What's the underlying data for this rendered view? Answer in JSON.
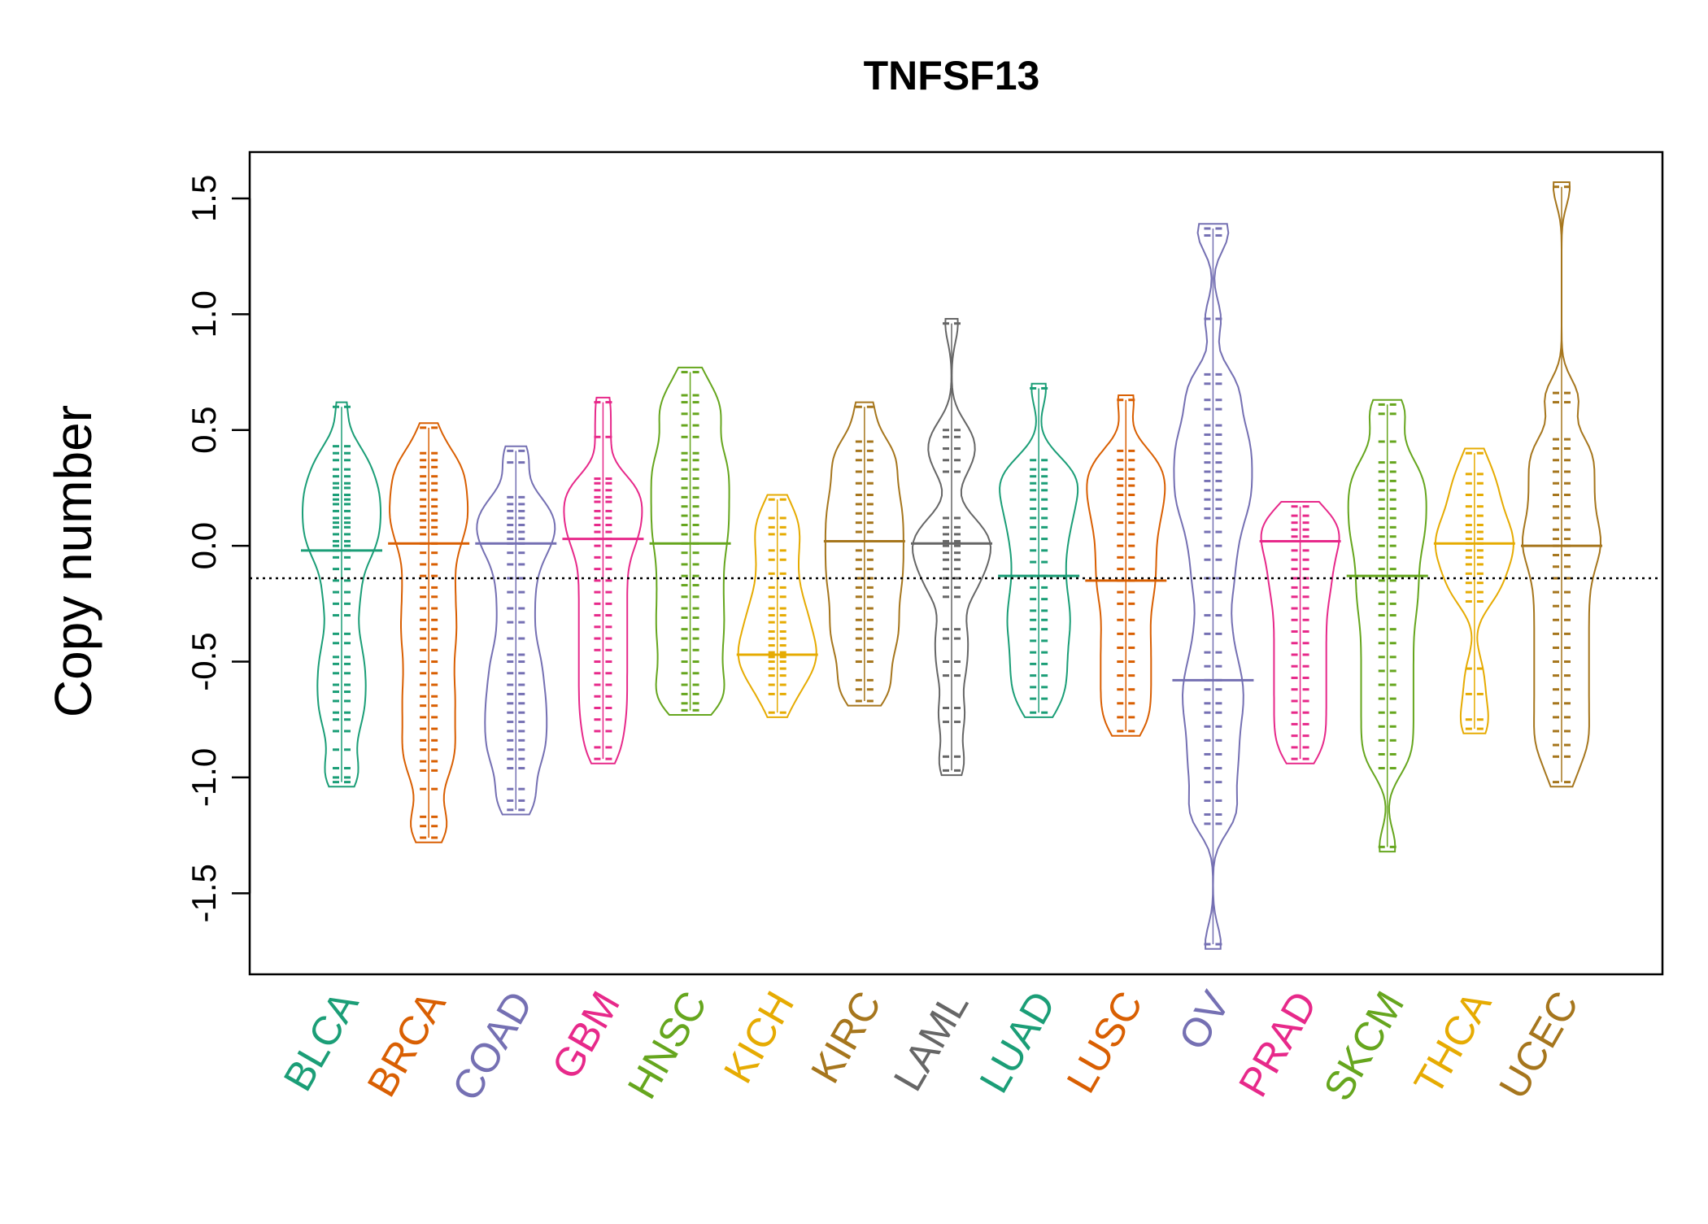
{
  "chart_data": {
    "type": "beanplot",
    "title": "TNFSF13",
    "xlabel": "",
    "ylabel": "Copy number",
    "ylim": [
      -1.85,
      1.7
    ],
    "yticks": [
      -1.5,
      -1.0,
      -0.5,
      0.0,
      0.5,
      1.0,
      1.5
    ],
    "ytick_labels": [
      "-1.5",
      "-1.0",
      "-0.5",
      "0.0",
      "0.5",
      "1.0",
      "1.5"
    ],
    "reference_line": -0.14,
    "grid": false,
    "legend": "none",
    "categories": [
      "BLCA",
      "BRCA",
      "COAD",
      "GBM",
      "HNSC",
      "KICH",
      "KIRC",
      "LAML",
      "LUAD",
      "LUSC",
      "OV",
      "PRAD",
      "SKCM",
      "THCA",
      "UCEC"
    ],
    "colors": [
      "#1B9E77",
      "#D95F02",
      "#7570B3",
      "#E7298A",
      "#66A61E",
      "#E6AB02",
      "#A6761D",
      "#666666",
      "#1B9E77",
      "#D95F02",
      "#7570B3",
      "#E7298A",
      "#66A61E",
      "#E6AB02",
      "#A6761D"
    ],
    "series": [
      {
        "category": "BLCA",
        "median": -0.02,
        "max": 0.6,
        "min": -1.02,
        "points": [
          0.6,
          0.43,
          0.4,
          0.37,
          0.33,
          0.3,
          0.27,
          0.25,
          0.22,
          0.2,
          0.18,
          0.15,
          0.12,
          0.1,
          0.08,
          0.05,
          0.02,
          0.0,
          -0.02,
          -0.05,
          -0.1,
          -0.15,
          -0.2,
          -0.25,
          -0.3,
          -0.38,
          -0.42,
          -0.48,
          -0.51,
          -0.55,
          -0.6,
          -0.63,
          -0.67,
          -0.72,
          -0.75,
          -0.8,
          -0.88,
          -0.96,
          -1.0,
          -1.02
        ]
      },
      {
        "category": "BRCA",
        "median": 0.01,
        "max": 0.51,
        "min": -1.26,
        "points": [
          0.51,
          0.4,
          0.37,
          0.34,
          0.3,
          0.27,
          0.24,
          0.2,
          0.17,
          0.14,
          0.11,
          0.08,
          0.05,
          0.01,
          -0.03,
          -0.08,
          -0.13,
          -0.18,
          -0.22,
          -0.27,
          -0.32,
          -0.36,
          -0.4,
          -0.45,
          -0.5,
          -0.55,
          -0.6,
          -0.65,
          -0.69,
          -0.74,
          -0.79,
          -0.84,
          -0.88,
          -0.93,
          -0.97,
          -1.05,
          -1.17,
          -1.21,
          -1.26
        ]
      },
      {
        "category": "COAD",
        "median": 0.01,
        "max": 0.41,
        "min": -1.14,
        "points": [
          0.41,
          0.36,
          0.21,
          0.18,
          0.15,
          0.12,
          0.09,
          0.06,
          0.03,
          0.01,
          -0.03,
          -0.08,
          -0.14,
          -0.2,
          -0.27,
          -0.33,
          -0.4,
          -0.47,
          -0.5,
          -0.55,
          -0.6,
          -0.64,
          -0.68,
          -0.72,
          -0.76,
          -0.8,
          -0.84,
          -0.88,
          -0.92,
          -0.96,
          -1.05,
          -1.1,
          -1.14
        ]
      },
      {
        "category": "GBM",
        "median": 0.03,
        "max": 0.62,
        "min": -0.92,
        "points": [
          0.62,
          0.47,
          0.29,
          0.27,
          0.24,
          0.21,
          0.19,
          0.15,
          0.12,
          0.09,
          0.06,
          0.03,
          0.0,
          -0.05,
          -0.1,
          -0.15,
          -0.2,
          -0.25,
          -0.3,
          -0.35,
          -0.4,
          -0.45,
          -0.5,
          -0.55,
          -0.6,
          -0.65,
          -0.7,
          -0.75,
          -0.8,
          -0.87,
          -0.92
        ]
      },
      {
        "category": "HNSC",
        "median": 0.01,
        "max": 0.75,
        "min": -0.71,
        "points": [
          0.75,
          0.65,
          0.62,
          0.57,
          0.52,
          0.47,
          0.4,
          0.37,
          0.33,
          0.29,
          0.25,
          0.21,
          0.17,
          0.13,
          0.09,
          0.05,
          0.01,
          -0.03,
          -0.08,
          -0.13,
          -0.17,
          -0.22,
          -0.27,
          -0.31,
          -0.36,
          -0.4,
          -0.45,
          -0.5,
          -0.55,
          -0.6,
          -0.64,
          -0.68,
          -0.71
        ]
      },
      {
        "category": "KICH",
        "median": -0.47,
        "max": 0.2,
        "min": -0.72,
        "points": [
          0.2,
          0.12,
          0.08,
          0.05,
          -0.02,
          -0.06,
          -0.12,
          -0.18,
          -0.22,
          -0.27,
          -0.3,
          -0.33,
          -0.37,
          -0.4,
          -0.43,
          -0.46,
          -0.48,
          -0.5,
          -0.53,
          -0.56,
          -0.6,
          -0.64,
          -0.72
        ]
      },
      {
        "category": "KIRC",
        "median": 0.02,
        "max": 0.6,
        "min": -0.67,
        "points": [
          0.6,
          0.45,
          0.41,
          0.37,
          0.32,
          0.27,
          0.22,
          0.18,
          0.14,
          0.1,
          0.06,
          0.02,
          -0.02,
          -0.06,
          -0.1,
          -0.14,
          -0.18,
          -0.22,
          -0.27,
          -0.32,
          -0.36,
          -0.4,
          -0.45,
          -0.5,
          -0.58,
          -0.62,
          -0.67
        ]
      },
      {
        "category": "LAML",
        "median": 0.01,
        "max": 0.96,
        "min": -0.97,
        "points": [
          0.96,
          0.5,
          0.47,
          0.42,
          0.37,
          0.32,
          0.12,
          0.08,
          0.05,
          0.02,
          0.0,
          -0.03,
          -0.06,
          -0.1,
          -0.14,
          -0.18,
          -0.22,
          -0.36,
          -0.4,
          -0.5,
          -0.56,
          -0.7,
          -0.76,
          -0.91,
          -0.97
        ]
      },
      {
        "category": "LUAD",
        "median": -0.13,
        "max": 0.68,
        "min": -0.72,
        "points": [
          0.68,
          0.37,
          0.33,
          0.3,
          0.27,
          0.24,
          0.2,
          0.16,
          0.12,
          0.08,
          0.03,
          -0.02,
          -0.07,
          -0.13,
          -0.18,
          -0.23,
          -0.28,
          -0.32,
          -0.36,
          -0.41,
          -0.46,
          -0.51,
          -0.56,
          -0.61,
          -0.66,
          -0.72
        ]
      },
      {
        "category": "LUSC",
        "median": -0.15,
        "max": 0.63,
        "min": -0.8,
        "points": [
          0.63,
          0.41,
          0.37,
          0.33,
          0.29,
          0.26,
          0.22,
          0.18,
          0.14,
          0.1,
          0.05,
          0.0,
          -0.05,
          -0.1,
          -0.15,
          -0.2,
          -0.25,
          -0.32,
          -0.38,
          -0.44,
          -0.5,
          -0.56,
          -0.62,
          -0.68,
          -0.74,
          -0.8
        ]
      },
      {
        "category": "OV",
        "median": -0.58,
        "max": 1.37,
        "min": -1.72,
        "points": [
          1.37,
          1.34,
          0.98,
          0.74,
          0.7,
          0.63,
          0.59,
          0.52,
          0.48,
          0.44,
          0.4,
          0.36,
          0.32,
          0.28,
          0.24,
          0.2,
          0.16,
          0.12,
          0.06,
          0.0,
          -0.06,
          -0.14,
          -0.2,
          -0.3,
          -0.38,
          -0.46,
          -0.52,
          -0.58,
          -0.62,
          -0.68,
          -0.72,
          -0.78,
          -0.84,
          -0.9,
          -0.96,
          -1.02,
          -1.1,
          -1.16,
          -1.2,
          -1.72
        ]
      },
      {
        "category": "PRAD",
        "median": 0.02,
        "max": 0.17,
        "min": -0.92,
        "points": [
          0.17,
          0.13,
          0.1,
          0.07,
          0.04,
          0.02,
          -0.02,
          -0.06,
          -0.1,
          -0.14,
          -0.18,
          -0.22,
          -0.27,
          -0.32,
          -0.37,
          -0.42,
          -0.47,
          -0.52,
          -0.57,
          -0.62,
          -0.67,
          -0.72,
          -0.77,
          -0.82,
          -0.87,
          -0.92
        ]
      },
      {
        "category": "SKCM",
        "median": -0.13,
        "max": 0.61,
        "min": -1.3,
        "points": [
          0.61,
          0.57,
          0.45,
          0.36,
          0.32,
          0.28,
          0.24,
          0.2,
          0.16,
          0.12,
          0.08,
          0.04,
          0.0,
          -0.05,
          -0.1,
          -0.15,
          -0.2,
          -0.25,
          -0.3,
          -0.36,
          -0.42,
          -0.48,
          -0.54,
          -0.6,
          -0.66,
          -0.72,
          -0.78,
          -0.84,
          -0.9,
          -0.96,
          -1.3
        ]
      },
      {
        "category": "THCA",
        "median": 0.01,
        "max": 0.4,
        "min": -0.79,
        "points": [
          0.4,
          0.31,
          0.27,
          0.22,
          0.17,
          0.13,
          0.09,
          0.06,
          0.03,
          0.01,
          -0.02,
          -0.05,
          -0.08,
          -0.12,
          -0.16,
          -0.2,
          -0.24,
          -0.53,
          -0.64,
          -0.75,
          -0.79
        ]
      },
      {
        "category": "UCEC",
        "median": 0.0,
        "max": 1.55,
        "min": -1.02,
        "points": [
          1.55,
          0.66,
          0.62,
          0.46,
          0.42,
          0.37,
          0.32,
          0.27,
          0.22,
          0.17,
          0.12,
          0.07,
          0.03,
          0.0,
          -0.04,
          -0.09,
          -0.14,
          -0.2,
          -0.26,
          -0.32,
          -0.38,
          -0.44,
          -0.5,
          -0.56,
          -0.62,
          -0.68,
          -0.74,
          -0.8,
          -0.86,
          -0.91,
          -1.02
        ]
      }
    ]
  }
}
